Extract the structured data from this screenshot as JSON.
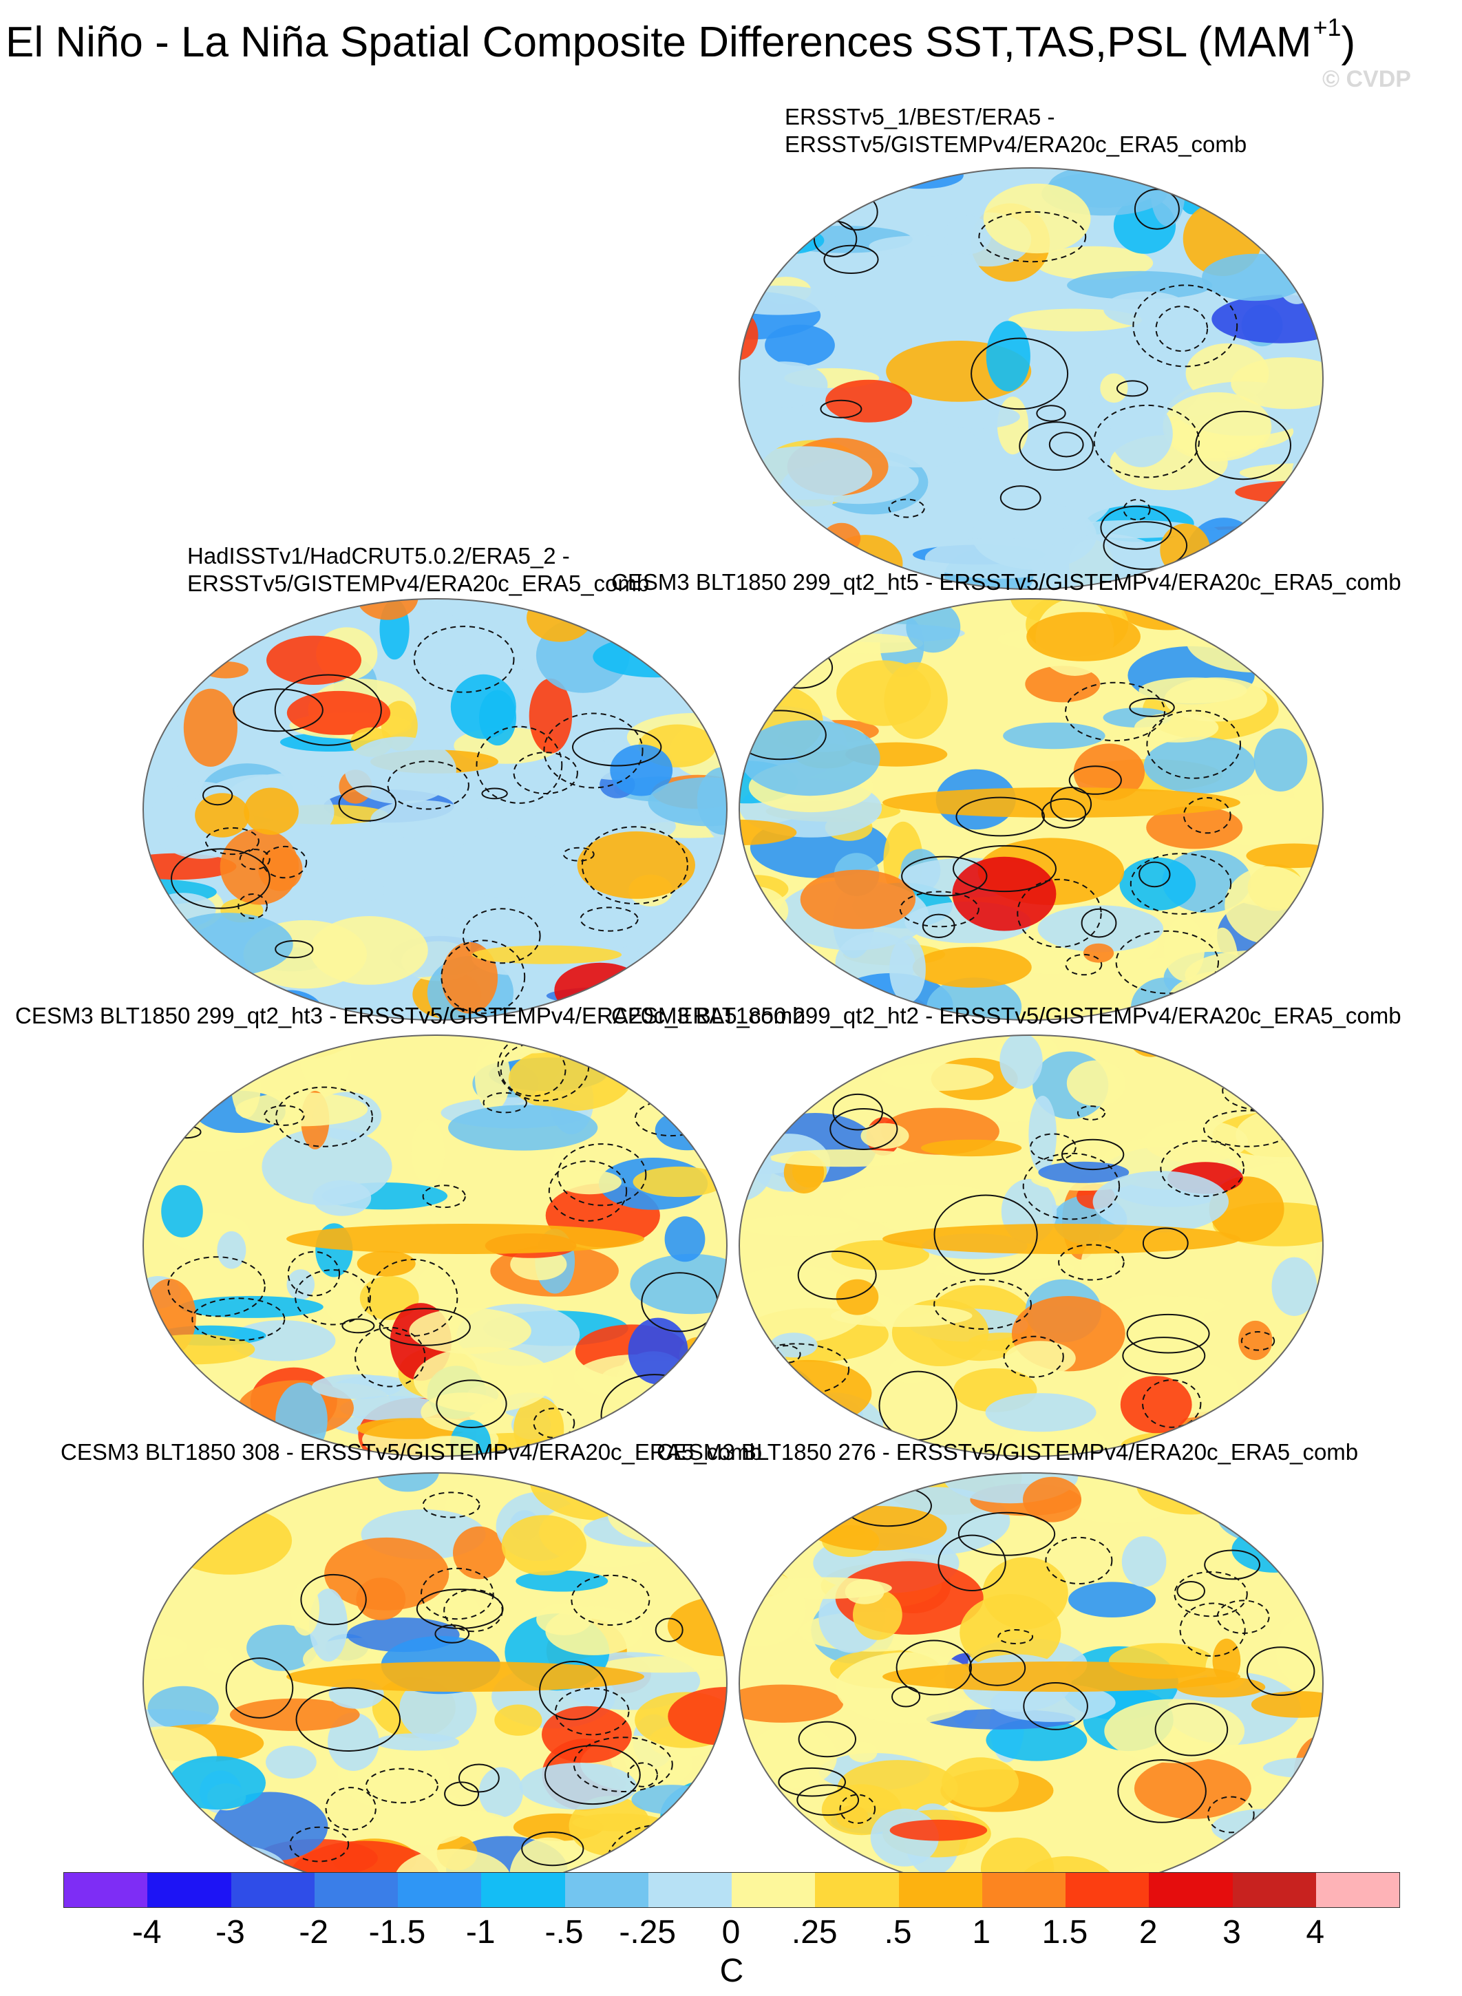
{
  "title": {
    "main": "El Niño - La Niña Spatial Composite Differences SST,TAS,PSL (MAM",
    "superscript": "+1",
    "close": ")"
  },
  "watermark": "© CVDP",
  "panels": [
    {
      "id": "p1",
      "line1": "ERSSTv5_1/BEST/ERA5 -",
      "line2": "ERSSTv5/GISTEMPv4/ERA20c_ERA5_comb"
    },
    {
      "id": "p2",
      "line1": "HadISSTv1/HadCRUT5.0.2/ERA5_2 -",
      "line2": "ERSSTv5/GISTEMPv4/ERA20c_ERA5_comb"
    },
    {
      "id": "p3",
      "line1": "CESM3 BLT1850 299_qt2_ht5 - ERSSTv5/GISTEMPv4/ERA20c_ERA5_comb"
    },
    {
      "id": "p4",
      "line1": "CESM3 BLT1850 299_qt2_ht3 - ERSSTv5/GISTEMPv4/ERA20c_ERA5_comb"
    },
    {
      "id": "p5",
      "line1": "CESM3 BLT1850 299_qt2_ht2 - ERSSTv5/GISTEMPv4/ERA20c_ERA5_comb"
    },
    {
      "id": "p6",
      "line1": "CESM3 BLT1850 308 - ERSSTv5/GISTEMPv4/ERA20c_ERA5_comb"
    },
    {
      "id": "p7",
      "line1": "CESM3 BLT1850 276 - ERSSTv5/GISTEMPv4/ERA20c_ERA5_comb"
    }
  ],
  "colorbar": {
    "colors": [
      "#7e2df5",
      "#1d14f5",
      "#2f4de8",
      "#3a7ee8",
      "#2f96f5",
      "#14bdf5",
      "#73c5f0",
      "#b7e1f5",
      "#fdf79b",
      "#fed83a",
      "#fdb210",
      "#fc8520",
      "#fc3e11",
      "#e50d0d",
      "#c8221f",
      "#feb3b7"
    ],
    "ticks": [
      "-4",
      "-3",
      "-2",
      "-1.5",
      "-1",
      "-.5",
      "-.25",
      "0",
      ".25",
      ".5",
      "1",
      "1.5",
      "2",
      "3",
      "4"
    ],
    "units": "C"
  }
}
